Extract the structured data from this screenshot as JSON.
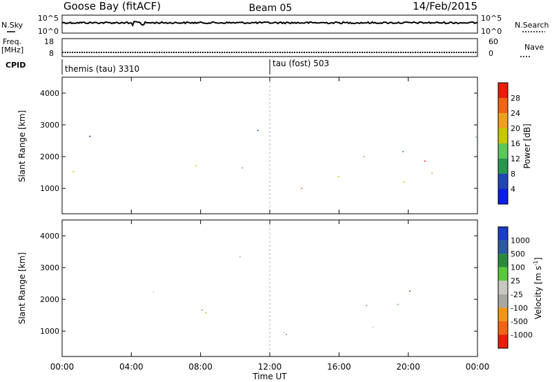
{
  "header": {
    "station": "Goose Bay (fitACF)",
    "beam": "Beam 05",
    "date": "14/Feb/2015"
  },
  "noise_panel": {
    "left_label": "N.Sky",
    "right_label": "N.Search",
    "tick_high": "10^5",
    "tick_low": "10^0"
  },
  "freq_panel": {
    "left_label_1": "Freq.",
    "left_label_2": "[MHz]",
    "left_tick_high": "18",
    "left_tick_low": "8",
    "right_label": "Nave",
    "right_tick_high": "60",
    "right_tick_low": "0"
  },
  "cpid_panel": {
    "label": "CPID",
    "mode_1": "themis (tau) 3310",
    "mode_2": "tau (fost) 503",
    "mode_2_start_hour": 12
  },
  "colors": {
    "power": [
      "#0a1ee6",
      "#1e46b4",
      "#289650",
      "#5ac85a",
      "#c8c800",
      "#f0a01e",
      "#f06414",
      "#e61e0a"
    ],
    "velocity": [
      "#1a3cc8",
      "#2a5aa0",
      "#2c8a3c",
      "#5ac83c",
      "#c8c8c0",
      "#a8a8a0",
      "#f09614",
      "#f06414",
      "#e61e0a"
    ],
    "ground_scatter": "#b4b4b4"
  },
  "chart_data": [
    {
      "type": "heatmap",
      "name": "power",
      "ylabel": "Slant Range [km]",
      "colorbar_label": "Power [dB]",
      "colorbar_ticks": [
        "4",
        "8",
        "12",
        "16",
        "20",
        "24",
        "28"
      ],
      "y_ticks": [
        "1000",
        "2000",
        "3000",
        "4000"
      ],
      "ylim": [
        200,
        4500
      ],
      "xlim_hours": [
        0,
        24
      ],
      "echo_bands": [
        {
          "t0": 0.6,
          "t1": 4.0,
          "r0": 1500,
          "r1": 1900,
          "level": 3
        },
        {
          "t0": 4.0,
          "t1": 6.5,
          "r0": 1900,
          "r1": 2300,
          "level": 4
        },
        {
          "t0": 6.5,
          "t1": 8.0,
          "r0": 1200,
          "r1": 2100,
          "level": 3
        },
        {
          "t0": 8.0,
          "t1": 11.0,
          "r0": 1300,
          "r1": 1800,
          "level": 2
        },
        {
          "t0": 11.0,
          "t1": 12.0,
          "r0": 1500,
          "r1": 2300,
          "level": 3
        },
        {
          "t0": 12.0,
          "t1": 16.0,
          "r0": 1000,
          "r1": 1600,
          "level": 4
        },
        {
          "t0": 13.0,
          "t1": 19.0,
          "r0": 700,
          "r1": 1100,
          "level": 6
        },
        {
          "t0": 15.5,
          "t1": 18.5,
          "r0": 450,
          "r1": 650,
          "level": 7
        },
        {
          "t0": 16.0,
          "t1": 24.0,
          "r0": 1200,
          "r1": 1800,
          "level": 4
        },
        {
          "t0": 20.5,
          "t1": 24.0,
          "r0": 1800,
          "r1": 2300,
          "level": 6
        },
        {
          "t0": 0.6,
          "t1": 3.0,
          "r0": 2300,
          "r1": 3100,
          "level": 1
        },
        {
          "t0": 8.5,
          "t1": 11.5,
          "r0": 2400,
          "r1": 3400,
          "level": 1
        },
        {
          "t0": 17.0,
          "t1": 24.0,
          "r0": 2000,
          "r1": 2800,
          "level": 2
        }
      ]
    },
    {
      "type": "heatmap",
      "name": "velocity",
      "ylabel": "Slant Range [km]",
      "colorbar_label": "Velocity [m s",
      "colorbar_label_sup": "-1",
      "colorbar_label_end": "]",
      "colorbar_ticks": [
        "1000",
        "500",
        "100",
        "25",
        "-25",
        "-100",
        "-500",
        "-1000"
      ],
      "x_ticks": [
        "00:00",
        "04:00",
        "08:00",
        "12:00",
        "16:00",
        "20:00",
        "00:00"
      ],
      "xlabel": "Time UT",
      "y_ticks": [
        "1000",
        "2000",
        "3000",
        "4000"
      ],
      "ylim": [
        200,
        4500
      ],
      "xlim_hours": [
        0,
        24
      ],
      "echo_bands": [
        {
          "t0": 0.6,
          "t1": 4.0,
          "r0": 1700,
          "r1": 2000,
          "level": 4
        },
        {
          "t0": 4.0,
          "t1": 7.0,
          "r0": 1900,
          "r1": 2300,
          "level": 4
        },
        {
          "t0": 7.0,
          "t1": 11.0,
          "r0": 1600,
          "r1": 2100,
          "level": 4
        },
        {
          "t0": 12.0,
          "t1": 22.0,
          "r0": 800,
          "r1": 1400,
          "level": 4
        },
        {
          "t0": 15.0,
          "t1": 24.0,
          "r0": 1400,
          "r1": 1900,
          "level": 4
        },
        {
          "t0": 7.0,
          "t1": 8.8,
          "r0": 1150,
          "r1": 1800,
          "level": 6
        },
        {
          "t0": 10.0,
          "t1": 10.9,
          "r0": 1700,
          "r1": 2200,
          "level": 6
        },
        {
          "t0": 1.0,
          "t1": 4.0,
          "r0": 1300,
          "r1": 1600,
          "level": 3
        },
        {
          "t0": 20.0,
          "t1": 24.0,
          "r0": 2200,
          "r1": 2800,
          "level": 3
        },
        {
          "t0": 8.5,
          "t1": 11.0,
          "r0": 2700,
          "r1": 3500,
          "level": 5
        },
        {
          "t0": 1.0,
          "t1": 3.5,
          "r0": 850,
          "r1": 1100,
          "level": 5
        }
      ]
    }
  ]
}
